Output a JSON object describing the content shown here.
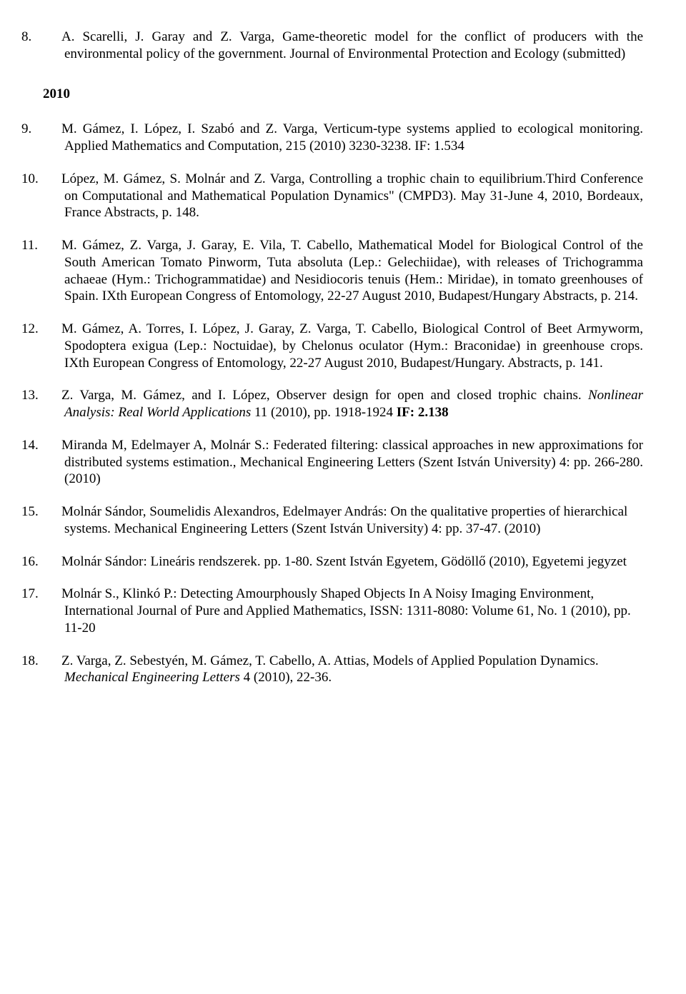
{
  "ref8": {
    "num": "8.",
    "text": "A. Scarelli, J. Garay and Z. Varga, Game-theoretic model for the conflict of producers with the environmental policy of the government. Journal of Environmental Protection and Ecology (submitted)"
  },
  "year2010": "2010",
  "ref9": {
    "num": "9.",
    "text": "M. Gámez, I. López, I. Szabó and Z. Varga, Verticum-type systems applied to ecological monitoring. Applied Mathematics and Computation, 215 (2010) 3230-3238. IF:  1.534"
  },
  "ref10": {
    "num": "10.",
    "text": "López, M. Gámez, S. Molnár and Z. Varga, Controlling a trophic chain to equilibrium.Third Conference on Computational and Mathematical Population Dynamics\" (CMPD3). May 31-June 4, 2010, Bordeaux, France Abstracts, p. 148."
  },
  "ref11": {
    "num": "11.",
    "text": "M. Gámez, Z. Varga, J. Garay, E. Vila, T. Cabello, Mathematical Model for Biological Control of the South American Tomato Pinworm, Tuta absoluta (Lep.: Gelechiidae), with releases of Trichogramma achaeae (Hym.: Trichogrammatidae) and Nesidiocoris tenuis (Hem.: Miridae), in tomato greenhouses of Spain. IXth European Congress of Entomology, 22-27 August 2010, Budapest/Hungary Abstracts, p. 214."
  },
  "ref12": {
    "num": "12.",
    "text": "M. Gámez, A. Torres, I. López, J. Garay, Z. Varga, T. Cabello, Biological Control of Beet Armyworm, Spodoptera exigua (Lep.: Noctuidae), by Chelonus oculator (Hym.: Braconidae) in greenhouse crops. IXth European Congress of Entomology, 22-27 August 2010, Budapest/Hungary. Abstracts, p. 141."
  },
  "ref13": {
    "num": "13.",
    "pre": "Z. Varga, M. Gámez, and I. López, Observer design for open and closed trophic chains. ",
    "italic": "Nonlinear Analysis: Real World Applications",
    "mid": " 11 (2010), pp. 1918-1924 ",
    "bold": "IF: 2.138"
  },
  "ref14": {
    "num": "14.",
    "text": "Miranda M, Edelmayer A, Molnár S.: Federated filtering: classical approaches in new approximations for distributed systems estimation., Mechanical Engineering Letters (Szent István University) 4: pp. 266-280. (2010)"
  },
  "ref15": {
    "num": "15.",
    "text": "Molnár Sándor, Soumelidis Alexandros, Edelmayer András: On the qualitative properties of hierarchical systems. Mechanical Engineering Letters (Szent István University) 4: pp. 37-47. (2010)"
  },
  "ref16": {
    "num": "16.",
    "text": "Molnár Sándor: Lineáris rendszerek.  pp. 1-80. Szent István Egyetem, Gödöllő (2010), Egyetemi jegyzet"
  },
  "ref17": {
    "num": "17.",
    "text": "Molnár S., Klinkó P.: Detecting Amourphously Shaped Objects In A Noisy Imaging Environment, International Journal of Pure and Applied Mathematics, ISSN: 1311-8080: Volume 61, No. 1 (2010), pp. 11-20"
  },
  "ref18": {
    "num": "18.",
    "pre": "Z. Varga, Z. Sebestyén, M. Gámez, T. Cabello, A. Attias, Models of Applied Population Dynamics. ",
    "italic": "Mechanical Engineering Letters",
    "post": " 4 (2010), 22-36."
  }
}
